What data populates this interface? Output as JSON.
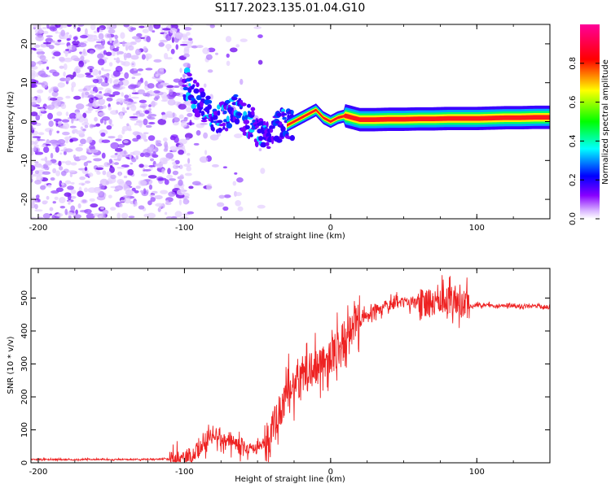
{
  "figure": {
    "title": "S117.2023.135.01.04.G10"
  },
  "chart_data": [
    {
      "type": "heatmap",
      "name": "spectrogram",
      "xlabel": "Height of straight line (km)",
      "ylabel": "Frequency (Hz)",
      "xlim": [
        -205,
        150
      ],
      "ylim": [
        -25,
        25
      ],
      "x_ticks": [
        -200,
        -100,
        0,
        100
      ],
      "y_ticks": [
        -20,
        -10,
        0,
        10,
        20
      ],
      "grid": false,
      "colormap": [
        "#ffffff",
        "#cc88ff",
        "#7700ff",
        "#0000ff",
        "#00ffff",
        "#00ff00",
        "#ffff00",
        "#ff0000",
        "#ff0099"
      ],
      "ridge_frequency": {
        "x": [
          -100,
          -95,
          -90,
          -85,
          -80,
          -75,
          -70,
          -65,
          -60,
          -55,
          -50,
          -45,
          -40,
          -35,
          -30,
          -25,
          -20,
          -15,
          -10,
          -5,
          0,
          5,
          10,
          15,
          20,
          30,
          40,
          50,
          60,
          70,
          80,
          90,
          100,
          110,
          120,
          130,
          140,
          150
        ],
        "y": [
          10,
          8,
          5,
          3,
          2,
          1,
          2,
          3,
          1,
          0,
          -2,
          -4,
          -3,
          -1,
          -1,
          0,
          1,
          2,
          3,
          1,
          0,
          1,
          1.5,
          1,
          0.5,
          0.5,
          0.6,
          0.6,
          0.7,
          0.7,
          0.8,
          0.8,
          0.8,
          0.9,
          1.0,
          1.0,
          1.1,
          1.1
        ]
      },
      "colorbar": {
        "label": "Normalized spectral amplitude",
        "range": [
          0,
          1
        ],
        "ticks": [
          "0.0",
          "0.2",
          "0.4",
          "0.6",
          "0.8"
        ]
      }
    },
    {
      "type": "line",
      "name": "snr",
      "xlabel": "Height of straight line (km)",
      "ylabel": "SNR (10 * v/v)",
      "xlim": [
        -205,
        150
      ],
      "ylim": [
        0,
        590
      ],
      "x_ticks": [
        -200,
        -100,
        0,
        100
      ],
      "y_ticks": [
        0,
        100,
        200,
        300,
        400,
        500
      ],
      "grid": false,
      "color": "#ee2222",
      "series": [
        {
          "x": [
            -205,
            -190,
            -170,
            -150,
            -130,
            -110,
            -100,
            -95,
            -90,
            -85,
            -80,
            -75,
            -70,
            -65,
            -60,
            -55,
            -50,
            -45,
            -40,
            -35,
            -30,
            -25,
            -20,
            -15,
            -10,
            -5,
            0,
            5,
            10,
            15,
            20,
            25,
            30,
            35,
            40,
            45,
            50,
            55,
            60,
            65,
            70,
            75,
            80,
            85,
            90,
            95,
            100,
            110,
            120,
            130,
            140,
            150
          ],
          "y": [
            10,
            10,
            10,
            10,
            10,
            12,
            15,
            20,
            40,
            70,
            90,
            75,
            60,
            55,
            50,
            40,
            45,
            60,
            100,
            150,
            220,
            230,
            260,
            280,
            290,
            300,
            320,
            350,
            380,
            410,
            430,
            450,
            465,
            470,
            480,
            485,
            487,
            486,
            485,
            487,
            490,
            492,
            495,
            497,
            485,
            475,
            478,
            477,
            477,
            476,
            476,
            472
          ]
        }
      ]
    }
  ]
}
